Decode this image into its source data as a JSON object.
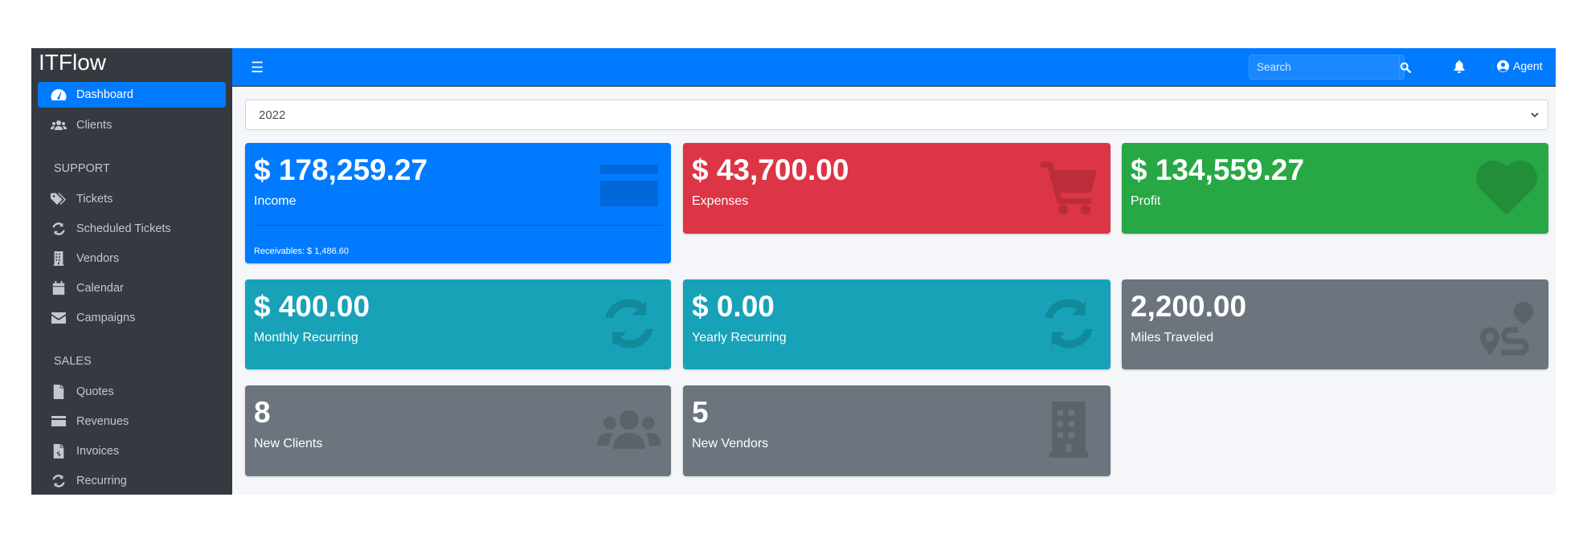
{
  "app": {
    "brand": "ITFlow"
  },
  "sidebar": {
    "items_top": [
      {
        "label": "Dashboard",
        "icon": "dashboard-icon",
        "active": true
      },
      {
        "label": "Clients",
        "icon": "users-icon"
      }
    ],
    "sections": [
      {
        "header": "SUPPORT",
        "items": [
          {
            "label": "Tickets",
            "icon": "tags-icon"
          },
          {
            "label": "Scheduled Tickets",
            "icon": "sync-icon"
          },
          {
            "label": "Vendors",
            "icon": "building-icon"
          },
          {
            "label": "Calendar",
            "icon": "calendar-icon"
          },
          {
            "label": "Campaigns",
            "icon": "envelope-icon"
          }
        ]
      },
      {
        "header": "SALES",
        "items": [
          {
            "label": "Quotes",
            "icon": "file-icon"
          },
          {
            "label": "Revenues",
            "icon": "credit-card-icon"
          },
          {
            "label": "Invoices",
            "icon": "file-invoice-dollar-icon"
          },
          {
            "label": "Recurring",
            "icon": "sync-icon"
          }
        ]
      }
    ]
  },
  "topbar": {
    "search_placeholder": "Search",
    "user": "Agent"
  },
  "filter": {
    "year": "2022"
  },
  "cards": [
    {
      "value": "$ 178,259.27",
      "label": "Income",
      "footer": "Receivables: $ 1,486.60",
      "color": "#007bff",
      "icon": "credit-card-icon"
    },
    {
      "value": "$ 43,700.00",
      "label": "Expenses",
      "color": "#dc3545",
      "icon": "shopping-cart-icon"
    },
    {
      "value": "$ 134,559.27",
      "label": "Profit",
      "color": "#28a745",
      "icon": "heart-icon"
    },
    {
      "value": "$ 400.00",
      "label": "Monthly Recurring",
      "color": "#17a2b8",
      "icon": "sync-icon"
    },
    {
      "value": "$ 0.00",
      "label": "Yearly Recurring",
      "color": "#17a2b8",
      "icon": "sync-icon"
    },
    {
      "value": "2,200.00",
      "label": "Miles Traveled",
      "color": "#6c757d",
      "icon": "route-icon"
    },
    {
      "value": "8",
      "label": "New Clients",
      "color": "#6c757d",
      "icon": "users-icon"
    },
    {
      "value": "5",
      "label": "New Vendors",
      "color": "#6c757d",
      "icon": "building-icon"
    }
  ]
}
